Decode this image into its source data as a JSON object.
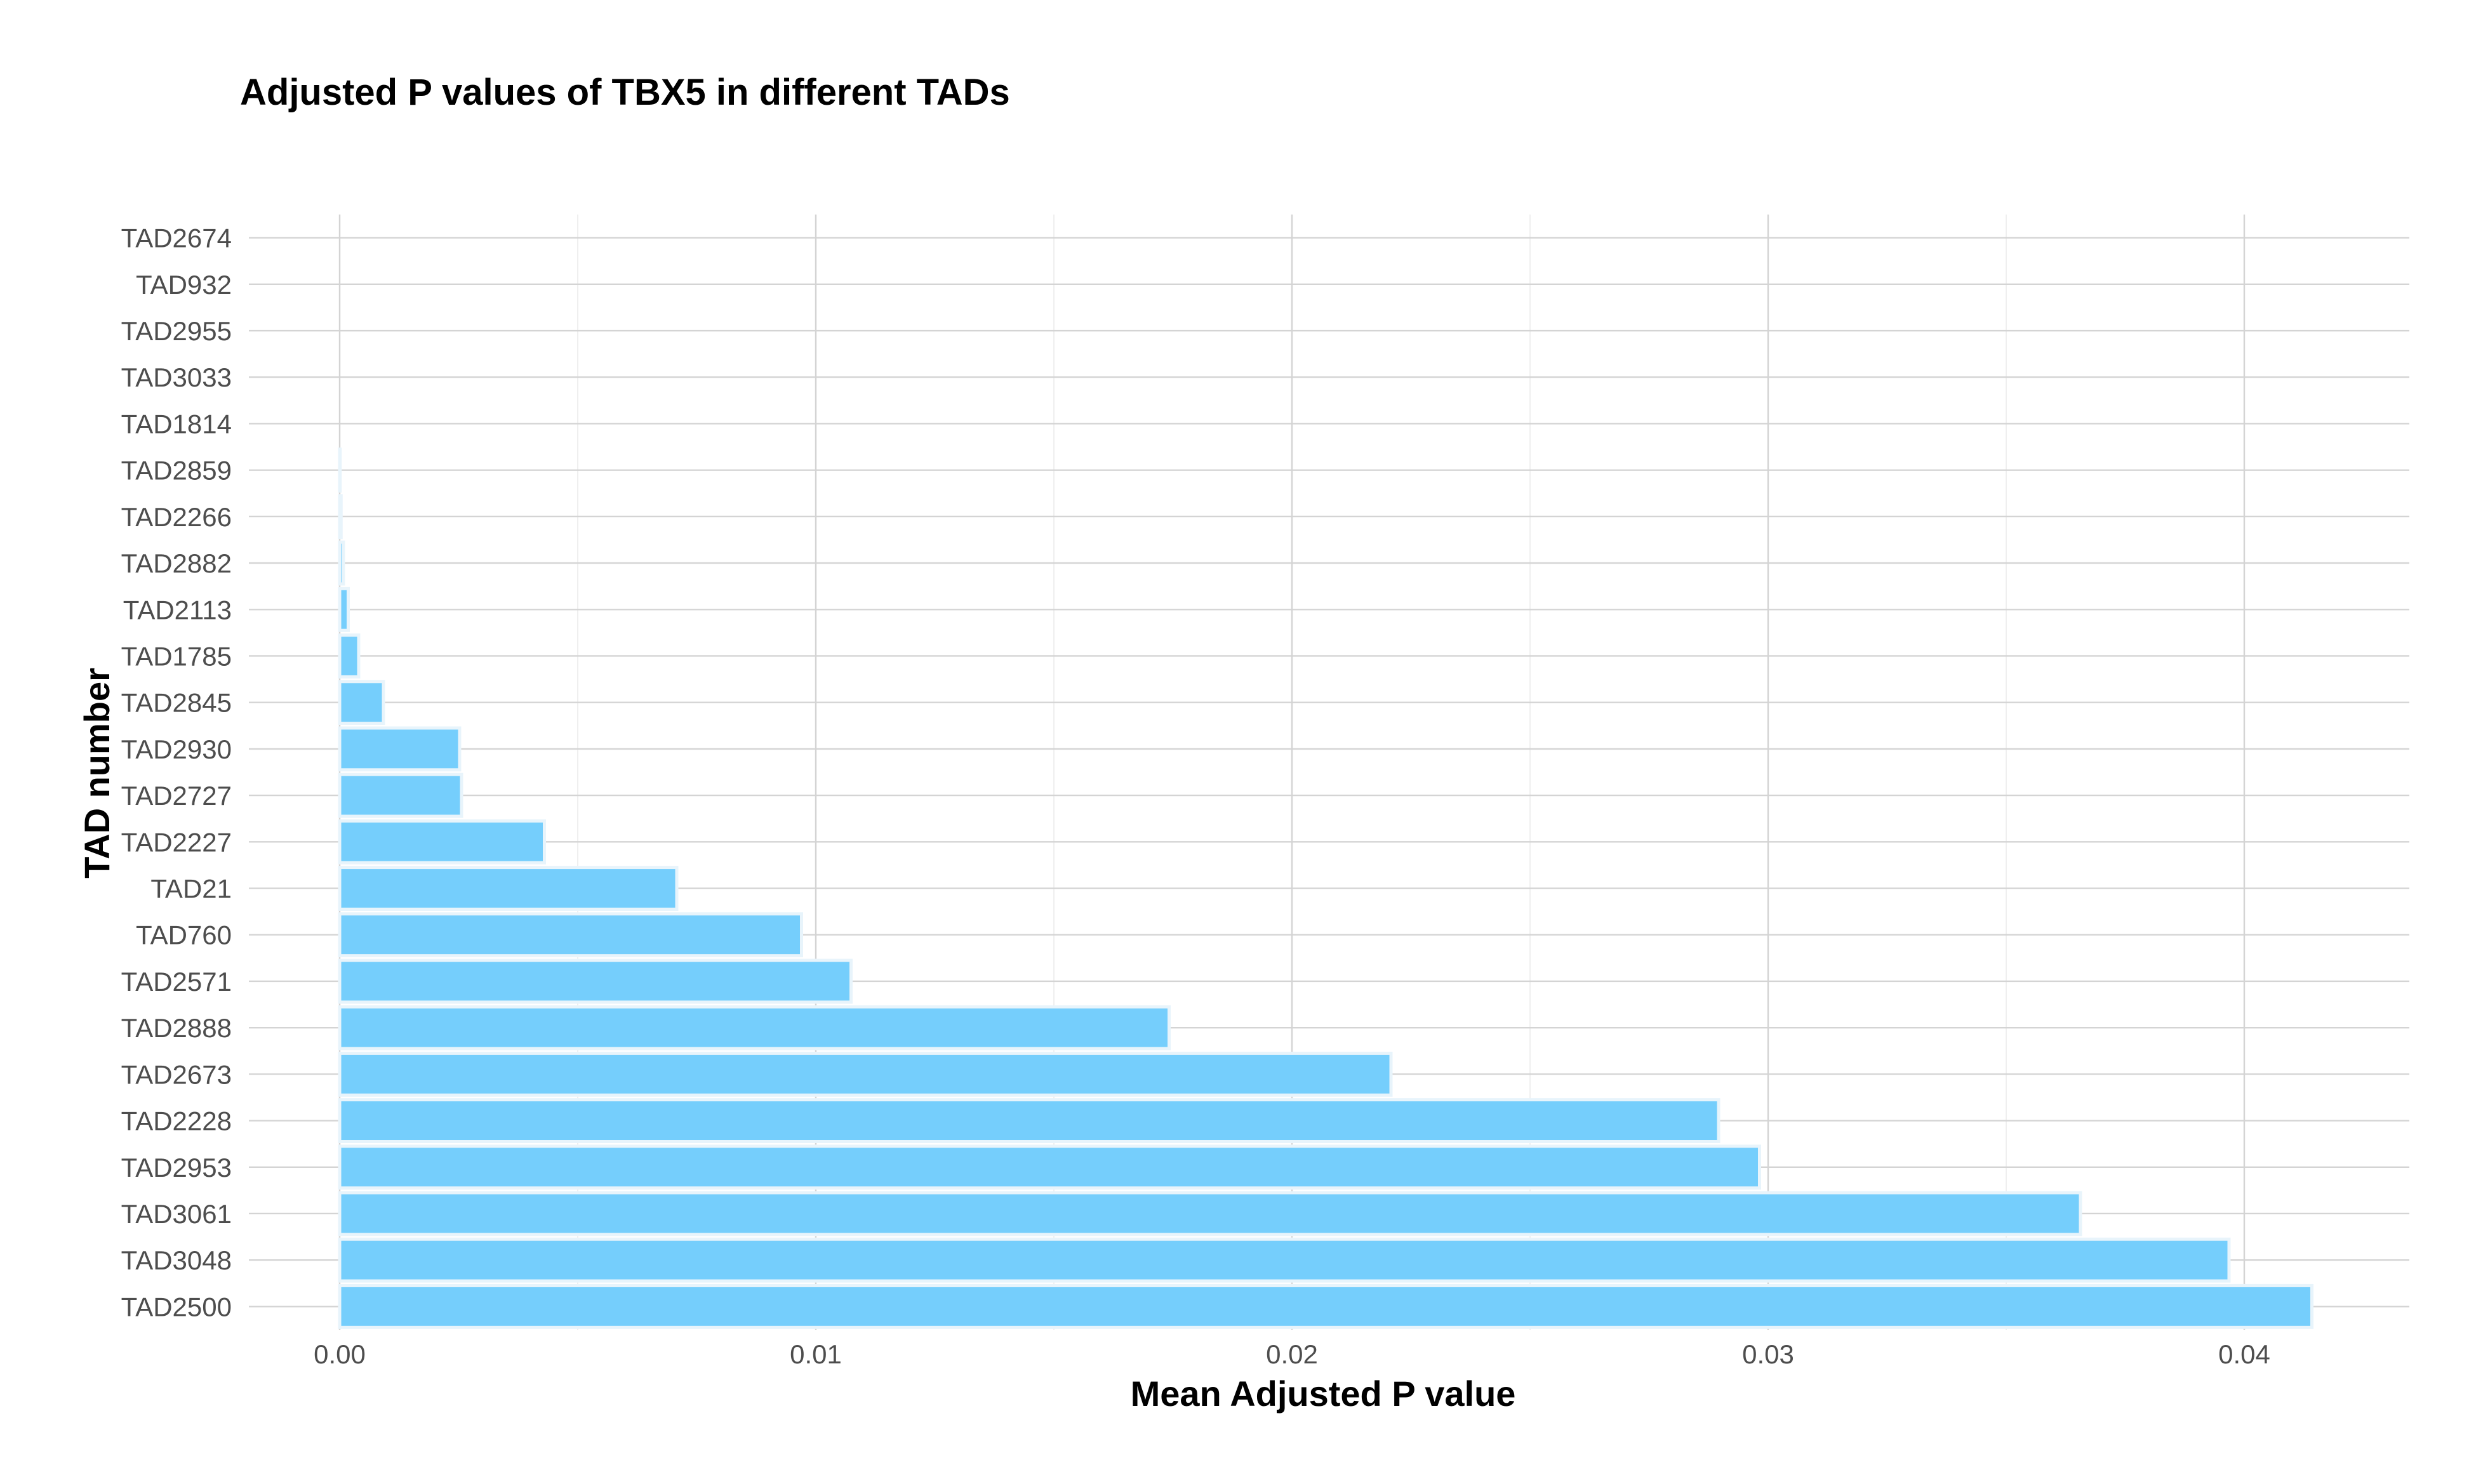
{
  "chart_data": {
    "type": "bar",
    "orientation": "horizontal",
    "title": "Adjusted P values of TBX5 in different TADs",
    "xlabel": "Mean Adjusted P value",
    "ylabel": "TAD number",
    "xlim": [
      -0.0018,
      0.0435
    ],
    "xticks": [
      0.0,
      0.01,
      0.02,
      0.03,
      0.04
    ],
    "xtick_labels": [
      "0.00",
      "0.01",
      "0.02",
      "0.03",
      "0.04"
    ],
    "grid": true,
    "bar_color": "#75cefc",
    "categories": [
      "TAD2674",
      "TAD932",
      "TAD2955",
      "TAD3033",
      "TAD1814",
      "TAD2859",
      "TAD2266",
      "TAD2882",
      "TAD2113",
      "TAD1785",
      "TAD2845",
      "TAD2930",
      "TAD2727",
      "TAD2227",
      "TAD21",
      "TAD760",
      "TAD2571",
      "TAD2888",
      "TAD2673",
      "TAD2228",
      "TAD2953",
      "TAD3061",
      "TAD3048",
      "TAD2500"
    ],
    "values": [
      0.0,
      0.0,
      0.0,
      0.0,
      0.0,
      1e-05,
      3e-05,
      8e-05,
      0.00018,
      0.0004,
      0.00092,
      0.00252,
      0.00256,
      0.0043,
      0.00708,
      0.0097,
      0.01074,
      0.01742,
      0.02208,
      0.02896,
      0.02982,
      0.03656,
      0.03968,
      0.04142
    ]
  }
}
